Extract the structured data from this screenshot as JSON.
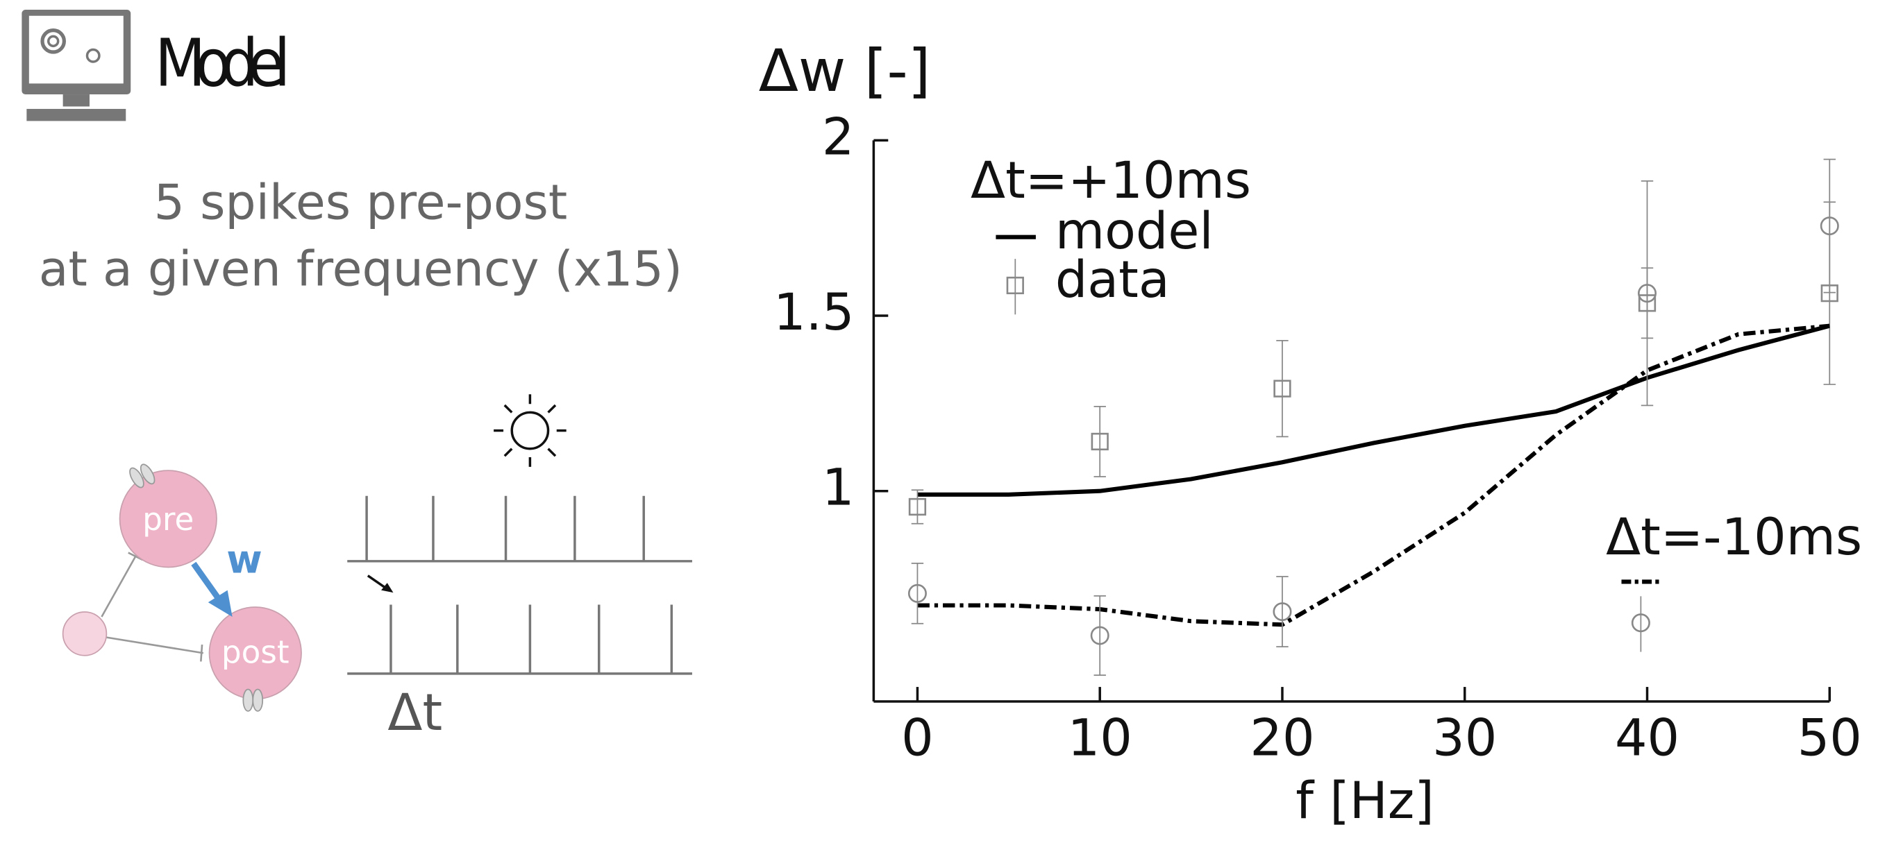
{
  "header": {
    "title": "Model"
  },
  "description": {
    "lines": [
      "5 spikes pre-post",
      "at a given frequency (x15)"
    ]
  },
  "diagram": {
    "pre": "pre",
    "post": "post",
    "weight": "w",
    "delay": "Δt"
  },
  "chart_data": {
    "type": "line",
    "ylabel": "Δw [-]",
    "xlabel": "f [Hz]",
    "xlim": [
      -2.4,
      50
    ],
    "xticks": [
      0,
      10,
      20,
      30,
      40,
      50
    ],
    "ylim": [
      0.4,
      2
    ],
    "yticks": [
      1,
      1.5,
      2
    ],
    "color": "#000000",
    "data_color": "#888888",
    "groups": [
      {
        "label": "Δt=+10ms",
        "series": [
          {
            "name": "model",
            "style": "solid",
            "x": [
              0,
              5,
              10,
              15,
              20,
              25,
              30,
              35,
              40,
              45,
              50
            ],
            "values": [
              0.99,
              0.99,
              1.0,
              1.034,
              1.082,
              1.137,
              1.186,
              1.227,
              1.323,
              1.402,
              1.471
            ]
          },
          {
            "name": "data",
            "marker": "square",
            "x": [
              0,
              10,
              20,
              40,
              50
            ],
            "values": [
              0.955,
              1.141,
              1.292,
              1.536,
              1.564
            ],
            "errors": [
              0.048,
              0.1,
              0.137,
              0.1,
              0.26
            ]
          }
        ]
      },
      {
        "label": "Δt=-10ms",
        "series": [
          {
            "style": "dashdot",
            "x": [
              0,
              5,
              10,
              15,
              20,
              25,
              30,
              35,
              40,
              45,
              50
            ],
            "values": [
              0.674,
              0.674,
              0.663,
              0.629,
              0.619,
              0.77,
              0.938,
              1.16,
              1.344,
              1.447,
              1.471
            ]
          },
          {
            "marker": "circle",
            "x": [
              0,
              10,
              20,
              40,
              50
            ],
            "values": [
              0.708,
              0.588,
              0.656,
              1.564,
              1.756
            ],
            "errors": [
              0.086,
              0.113,
              0.1,
              0.32,
              0.19
            ]
          }
        ]
      }
    ]
  }
}
